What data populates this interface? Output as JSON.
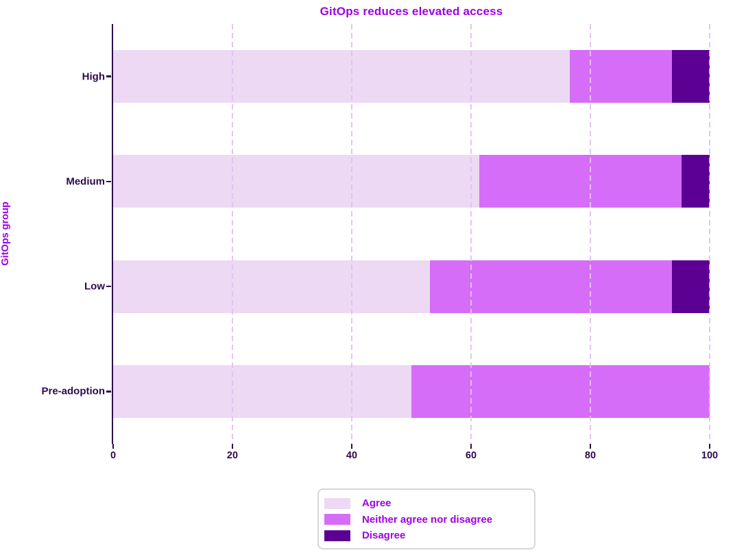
{
  "title": "GitOps reduces elevated access",
  "colors": {
    "accent": "#9d00e6",
    "dark_text": "#2d0a4e",
    "agree": "#edd9f3",
    "neither": "#d66df8",
    "disagree": "#5c0094",
    "gridline": "#e2c2f0",
    "legend_border": "#d6d6d6",
    "background": "#ffffff"
  },
  "chart_data": {
    "type": "bar",
    "orientation": "horizontal",
    "stacked": true,
    "title": "GitOps reduces elevated access",
    "xlabel": "",
    "ylabel": "GitOps group",
    "categories": [
      "High",
      "Medium",
      "Low",
      "Pre-adoption"
    ],
    "series": [
      {
        "name": "Agree",
        "color_key": "agree",
        "values": [
          76.5,
          61.4,
          53.1,
          50.0
        ]
      },
      {
        "name": "Neither agree nor disagree",
        "color_key": "neither",
        "values": [
          17.2,
          33.9,
          40.6,
          50.0
        ]
      },
      {
        "name": "Disagree",
        "color_key": "disagree",
        "values": [
          6.3,
          4.7,
          6.3,
          0.0
        ]
      }
    ],
    "xlim": [
      0,
      100
    ],
    "x_ticks": [
      0,
      20,
      40,
      60,
      80,
      100
    ],
    "grid": "vertical-dashed",
    "legend_position": "bottom-center"
  }
}
